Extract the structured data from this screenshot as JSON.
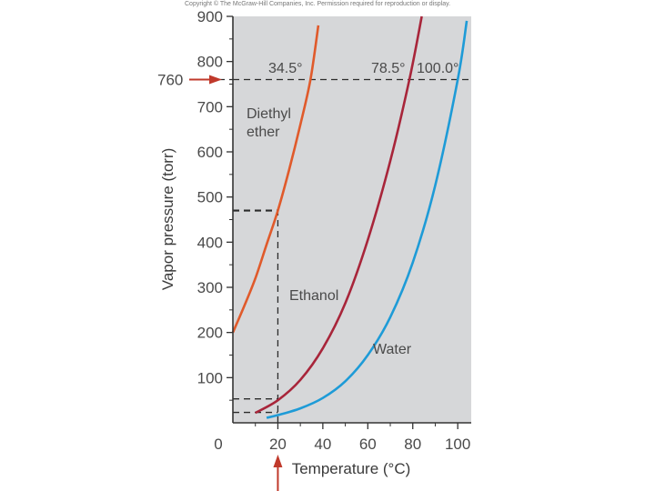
{
  "copyright": "Copyright © The McGraw-Hill Companies, Inc. Permission required for reproduction or display.",
  "chart_data": {
    "type": "line",
    "title": "",
    "xlabel": "Temperature (°C)",
    "ylabel": "Vapor pressure (torr)",
    "xlim": [
      0,
      106
    ],
    "ylim": [
      0,
      900
    ],
    "x_ticks": [
      0,
      20,
      40,
      60,
      80,
      100
    ],
    "y_ticks": [
      100,
      200,
      300,
      400,
      500,
      600,
      700,
      800,
      900
    ],
    "x_tick_labels": [
      "0",
      "20",
      "40",
      "60",
      "80",
      "100"
    ],
    "y_tick_labels": [
      "100",
      "200",
      "300",
      "400",
      "500",
      "600",
      "700",
      "800",
      "900"
    ],
    "grid": false,
    "background": "#d6d7d9",
    "series": [
      {
        "name": "Diethyl ether",
        "label_lines": [
          "Diethyl",
          "ether"
        ],
        "color": "#e05a2b",
        "x": [
          0,
          5,
          10,
          15,
          20,
          25,
          30,
          34.5,
          38
        ],
        "y": [
          200,
          258,
          320,
          395,
          470,
          560,
          660,
          760,
          880
        ]
      },
      {
        "name": "Ethanol",
        "label_lines": [
          "Ethanol"
        ],
        "color": "#a8253a",
        "x": [
          10,
          20,
          30,
          40,
          50,
          60,
          70,
          78.5,
          84
        ],
        "y": [
          22,
          50,
          95,
          165,
          265,
          405,
          580,
          760,
          900
        ]
      },
      {
        "name": "Water",
        "label_lines": [
          "Water"
        ],
        "color": "#1e9bd7",
        "x": [
          15,
          20,
          30,
          40,
          50,
          60,
          70,
          80,
          90,
          100,
          104
        ],
        "y": [
          11,
          17,
          32,
          55,
          92,
          150,
          234,
          355,
          526,
          760,
          890
        ]
      }
    ],
    "reference_lines": [
      {
        "label": "760",
        "axis": "y",
        "value": 760
      },
      {
        "axis": "y",
        "value": 470,
        "x_to": 20
      },
      {
        "axis": "y",
        "value": 53,
        "x_to": 20
      },
      {
        "axis": "y",
        "value": 23,
        "x_to": 20
      },
      {
        "axis": "x",
        "value": 20,
        "y_to": 470
      }
    ],
    "annotations": [
      {
        "text": "34.5°",
        "x": 34.5,
        "y": 760
      },
      {
        "text": "78.5°",
        "x": 78.5,
        "y": 760
      },
      {
        "text": "100.0°",
        "x": 100,
        "y": 760
      }
    ],
    "arrows": [
      {
        "axis": "y",
        "value": 760,
        "color": "#c0392b"
      },
      {
        "axis": "x",
        "value": 20,
        "color": "#c0392b"
      }
    ]
  }
}
